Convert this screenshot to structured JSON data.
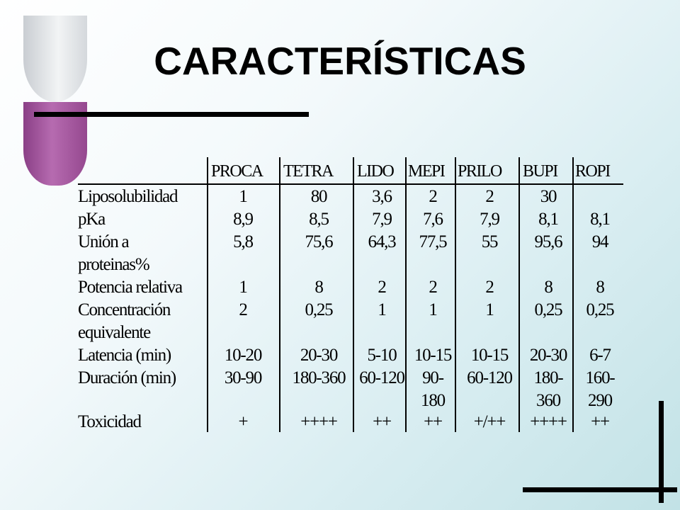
{
  "title": "CARACTERÍSTICAS",
  "table": {
    "headers": [
      "PROCA",
      "TETRA",
      "LIDO",
      "MEPI",
      "PRILO",
      "BUPI",
      "ROPI"
    ],
    "rows": [
      {
        "label": "Liposolubilidad",
        "cells": [
          "1",
          "80",
          "3,6",
          "2",
          "2",
          "30",
          ""
        ]
      },
      {
        "label": "pKa",
        "cells": [
          "8,9",
          "8,5",
          "7,9",
          "7,6",
          "7,9",
          "8,1",
          "8,1"
        ]
      },
      {
        "label": "Unión a",
        "cells": [
          "5,8",
          "75,6",
          "64,3",
          "77,5",
          "55",
          "95,6",
          "94"
        ]
      },
      {
        "label": "proteinas%",
        "cells": [
          "",
          "",
          "",
          "",
          "",
          "",
          ""
        ]
      },
      {
        "label": "Potencia relativa",
        "cells": [
          "1",
          "8",
          "2",
          "2",
          "2",
          "8",
          "8"
        ]
      },
      {
        "label": "Concentración",
        "cells": [
          "2",
          "0,25",
          "1",
          "1",
          "1",
          "0,25",
          "0,25"
        ]
      },
      {
        "label": "equivalente",
        "cells": [
          "",
          "",
          "",
          "",
          "",
          "",
          ""
        ]
      },
      {
        "label": "Latencia (min)",
        "cells": [
          "10-20",
          "20-30",
          "5-10",
          "10-15",
          "10-15",
          "20-30",
          "6-7"
        ]
      },
      {
        "label": "Duración (min)",
        "cells": [
          "30-90",
          "180-360",
          "60-120",
          "90-",
          "60-120",
          "180-",
          "160-"
        ]
      },
      {
        "label": "",
        "cells": [
          "",
          "",
          "",
          "180",
          "",
          "360",
          "290"
        ]
      },
      {
        "label": "Toxicidad",
        "cells": [
          "+",
          "++++",
          "++",
          "++",
          "+/++",
          "++++",
          "++"
        ]
      }
    ]
  }
}
